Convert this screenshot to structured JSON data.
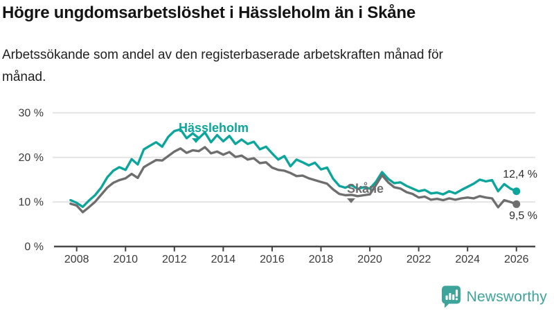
{
  "header": {
    "title": "Högre ungdomsarbetslöshet i Hässleholm än i Skåne",
    "subtitle": "Arbetssökande som andel av den registerbaserade arbetskraften månad för månad."
  },
  "chart_data": {
    "type": "line",
    "title": "Högre ungdomsarbetslöshet i Hässleholm än i Skåne",
    "subtitle": "Arbetssökande som andel av den registerbaserade arbetskraften månad för månad.",
    "xlabel": "",
    "ylabel": "",
    "y_unit": "%",
    "xlim": [
      2007.5,
      2026.8
    ],
    "ylim": [
      0,
      30
    ],
    "grid": "horizontal",
    "legend_position": "inline-labels-on-lines",
    "x_ticks": [
      2008,
      2010,
      2012,
      2014,
      2016,
      2018,
      2020,
      2022,
      2024,
      2026
    ],
    "x_tick_labels": [
      "2008",
      "2010",
      "2012",
      "2014",
      "2016",
      "2018",
      "2020",
      "2022",
      "2024",
      "2026"
    ],
    "y_ticks": [
      0,
      10,
      20,
      30
    ],
    "y_tick_labels": [
      "0 %",
      "10 %",
      "20 %",
      "30 %"
    ],
    "x": [
      2007.75,
      2008.0,
      2008.25,
      2008.5,
      2008.75,
      2009.0,
      2009.25,
      2009.5,
      2009.75,
      2010.0,
      2010.25,
      2010.5,
      2010.75,
      2011.0,
      2011.25,
      2011.5,
      2011.75,
      2012.0,
      2012.25,
      2012.5,
      2012.75,
      2013.0,
      2013.25,
      2013.5,
      2013.75,
      2014.0,
      2014.25,
      2014.5,
      2014.75,
      2015.0,
      2015.25,
      2015.5,
      2015.75,
      2016.0,
      2016.25,
      2016.5,
      2016.75,
      2017.0,
      2017.25,
      2017.5,
      2017.75,
      2018.0,
      2018.25,
      2018.5,
      2018.75,
      2019.0,
      2019.25,
      2019.5,
      2019.75,
      2020.0,
      2020.25,
      2020.5,
      2020.75,
      2021.0,
      2021.25,
      2021.5,
      2021.75,
      2022.0,
      2022.25,
      2022.5,
      2022.75,
      2023.0,
      2023.25,
      2023.5,
      2023.75,
      2024.0,
      2024.25,
      2024.5,
      2024.75,
      2025.0,
      2025.25,
      2025.5,
      2025.75,
      2026.0
    ],
    "series": [
      {
        "name": "Hässleholm",
        "color": "#0ba59c",
        "end_value": 12.4,
        "end_label": "12,4 %",
        "values": [
          10.4,
          9.8,
          8.9,
          10.3,
          11.5,
          13.2,
          15.5,
          17.0,
          17.8,
          17.2,
          19.6,
          18.4,
          21.8,
          22.6,
          23.4,
          22.4,
          24.6,
          25.9,
          26.3,
          24.3,
          25.4,
          24.3,
          25.6,
          23.4,
          25.0,
          23.6,
          24.8,
          23.0,
          24.0,
          23.0,
          23.5,
          21.8,
          22.4,
          20.9,
          19.5,
          20.3,
          18.0,
          19.5,
          18.9,
          18.2,
          18.8,
          17.3,
          17.7,
          15.2,
          13.6,
          13.2,
          13.8,
          12.9,
          13.3,
          13.0,
          14.5,
          16.7,
          15.2,
          14.2,
          14.4,
          13.6,
          13.0,
          12.4,
          12.7,
          11.9,
          12.1,
          11.7,
          12.4,
          11.9,
          12.7,
          13.4,
          14.1,
          15.0,
          14.6,
          14.9,
          12.4,
          14.0,
          13.0,
          12.4
        ]
      },
      {
        "name": "Skåne",
        "color": "#6e6e6e",
        "end_value": 9.5,
        "end_label": "9,5 %",
        "values": [
          9.6,
          9.2,
          7.7,
          8.8,
          10.0,
          11.6,
          13.2,
          14.3,
          14.9,
          15.3,
          16.3,
          15.4,
          17.8,
          18.6,
          19.4,
          19.3,
          20.3,
          21.3,
          22.0,
          21.0,
          21.6,
          21.4,
          22.3,
          20.9,
          21.3,
          20.6,
          21.2,
          20.1,
          20.4,
          19.5,
          19.8,
          18.7,
          18.9,
          17.7,
          17.2,
          17.0,
          16.5,
          15.8,
          15.9,
          15.3,
          14.9,
          14.5,
          14.1,
          12.8,
          11.8,
          11.5,
          11.6,
          11.3,
          11.5,
          11.7,
          13.8,
          16.0,
          14.4,
          13.3,
          13.0,
          12.2,
          11.8,
          11.0,
          11.2,
          10.5,
          10.7,
          10.4,
          10.8,
          10.5,
          10.8,
          11.0,
          10.8,
          11.3,
          11.0,
          10.8,
          8.8,
          10.4,
          10.0,
          9.5
        ]
      }
    ]
  },
  "annotations": {
    "hassleholm_label": "Hässleholm",
    "skane_label": "Skåne",
    "hassleholm_end_label": "12,4 %",
    "skane_end_label": "9,5 %"
  },
  "footer": {
    "brand": "Newsworthy",
    "logo_icon": "bar-chart-speech-bubble-icon",
    "brand_color": "#3da39b"
  },
  "colors": {
    "hassleholm_line": "#0ba59c",
    "skane_line": "#6e6e6e",
    "grid": "#e3e3e3",
    "axis": "#3f3f3f",
    "tick_text": "#3a3a3a",
    "title_text": "#141414",
    "value_label_text": "#2e2e2e",
    "background": "#ffffff"
  }
}
